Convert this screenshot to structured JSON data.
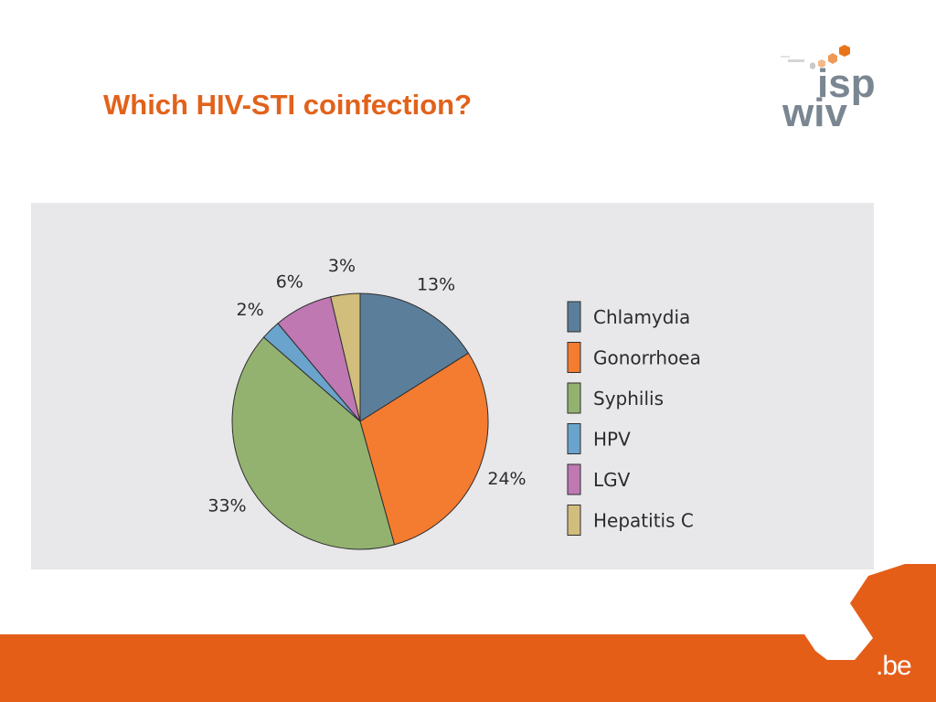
{
  "slide": {
    "title": "Which HIV-STI coinfection?"
  },
  "logo": {
    "top_text": "isp",
    "bottom_text": "wiv",
    "colors": {
      "text": "#7a8691",
      "accent": "#e8751a"
    }
  },
  "footer": {
    "brand_text": ".be",
    "color": "#e55e18"
  },
  "chart_data": {
    "type": "pie",
    "start_angle_deg": 0,
    "direction": "clockwise",
    "slices": [
      {
        "label": "Chlamydia",
        "value": 13,
        "display": "13%",
        "color": "#5b7f9b"
      },
      {
        "label": "Gonorrhoea",
        "value": 24,
        "display": "24%",
        "color": "#f47c30"
      },
      {
        "label": "Syphilis",
        "value": 33,
        "display": "33%",
        "color": "#94b26f"
      },
      {
        "label": "HPV",
        "value": 2,
        "display": "2%",
        "color": "#6aa3cc"
      },
      {
        "label": "LGV",
        "value": 6,
        "display": "6%",
        "color": "#bf78b2"
      },
      {
        "label": "Hepatitis C",
        "value": 3,
        "display": "3%",
        "color": "#d1bd7c"
      }
    ],
    "legend_position": "right",
    "background": "#e8e7ea"
  }
}
